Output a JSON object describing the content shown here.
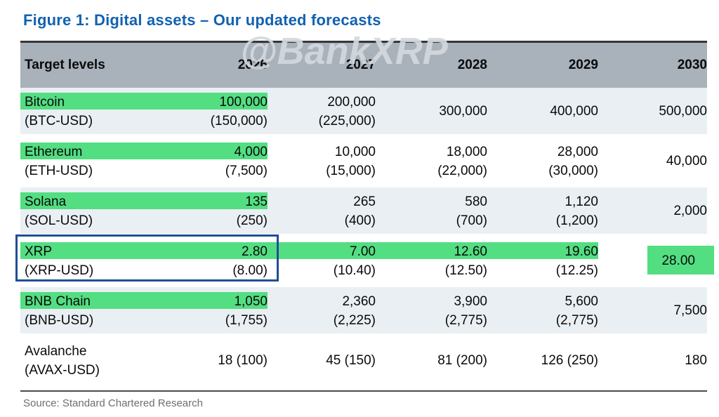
{
  "title": "Figure 1: Digital assets – Our updated forecasts",
  "watermark": "@BankXRP",
  "source": "Source: Standard Chartered Research",
  "colors": {
    "title_blue": "#1261b0",
    "header_gray": "#a9b1ba",
    "row_alt_blue": "#e9eff3",
    "highlight_green": "#53de82",
    "box_blue": "#1e4f94"
  },
  "table": {
    "header": {
      "col0": "Target levels",
      "years": [
        "2026",
        "2027",
        "2028",
        "2029",
        "2030"
      ]
    },
    "rows": [
      {
        "name": "Bitcoin",
        "ticker": "(BTC-USD)",
        "c2026": [
          "100,000",
          "(150,000)"
        ],
        "c2027": [
          "200,000",
          "(225,000)"
        ],
        "c2028": [
          "300,000"
        ],
        "c2029": [
          "400,000"
        ],
        "c2030": [
          "500,000"
        ]
      },
      {
        "name": "Ethereum",
        "ticker": "(ETH-USD)",
        "c2026": [
          "4,000",
          "(7,500)"
        ],
        "c2027": [
          "10,000",
          "(15,000)"
        ],
        "c2028": [
          "18,000",
          "(22,000)"
        ],
        "c2029": [
          "28,000",
          "(30,000)"
        ],
        "c2030": [
          "40,000"
        ]
      },
      {
        "name": "Solana",
        "ticker": "(SOL-USD)",
        "c2026": [
          "135",
          "(250)"
        ],
        "c2027": [
          "265",
          "(400)"
        ],
        "c2028": [
          "580",
          "(700)"
        ],
        "c2029": [
          "1,120",
          "(1,200)"
        ],
        "c2030": [
          "2,000"
        ]
      },
      {
        "name": "XRP",
        "ticker": "(XRP-USD)",
        "c2026": [
          "2.80",
          "(8.00)"
        ],
        "c2027": [
          "7.00",
          "(10.40)"
        ],
        "c2028": [
          "12.60",
          "(12.50)"
        ],
        "c2029": [
          "19.60",
          "(12.25)"
        ],
        "c2030": [
          "28.00"
        ]
      },
      {
        "name": "BNB Chain",
        "ticker": "(BNB-USD)",
        "c2026": [
          "1,050",
          "(1,755)"
        ],
        "c2027": [
          "2,360",
          "(2,225)"
        ],
        "c2028": [
          "3,900",
          "(2,775)"
        ],
        "c2029": [
          "5,600",
          "(2,775)"
        ],
        "c2030": [
          "7,500"
        ]
      },
      {
        "name": "Avalanche",
        "ticker": "(AVAX-USD)",
        "c2026": [
          "18 (100)"
        ],
        "c2027": [
          "45 (150)"
        ],
        "c2028": [
          "81 (200)"
        ],
        "c2029": [
          "126 (250)"
        ],
        "c2030": [
          "180"
        ]
      }
    ]
  }
}
